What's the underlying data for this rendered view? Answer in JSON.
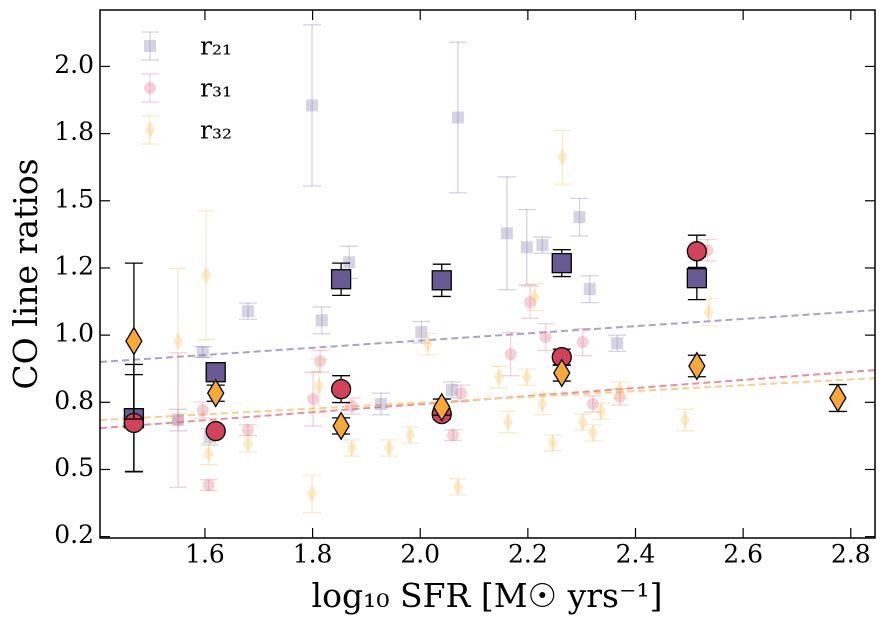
{
  "chart_data": {
    "type": "scatter",
    "ylabel": "CO line ratios",
    "xlabel": "log₁₀ SFR [M☉ yrs⁻¹]",
    "xlim": [
      1.405,
      2.845
    ],
    "ylim": [
      0.245,
      2.21
    ],
    "xticks": [
      1.6,
      1.8,
      {
        "value": 2,
        "label": "2.0"
      },
      2.2,
      2.4,
      2.6,
      2.8
    ],
    "yticks": [
      {
        "value": 0.25,
        "label": "0.2"
      },
      0.5,
      {
        "value": 0.75,
        "label": "0.8"
      },
      {
        "value": 1,
        "label": "1.0"
      },
      {
        "value": 1.25,
        "label": "1.2"
      },
      1.5,
      {
        "value": 1.75,
        "label": "1.8"
      },
      {
        "value": 2,
        "label": "2.0"
      }
    ],
    "legend": "upper left",
    "series": [
      {
        "name": "r₂₁",
        "color": "#8a80b0",
        "marker": "square",
        "faint": true,
        "x": [
          1.55,
          1.596,
          1.609,
          1.68,
          1.799,
          1.817,
          1.868,
          1.927,
          2.002,
          2.059,
          2.07,
          2.161,
          2.198,
          2.227,
          2.296,
          2.315,
          2.366
        ],
        "y": [
          0.684,
          0.937,
          0.621,
          1.089,
          1.855,
          1.055,
          1.271,
          0.744,
          1.011,
          0.796,
          1.81,
          1.379,
          1.327,
          1.335,
          1.439,
          1.171,
          0.97
        ],
        "errors": [
          0.04,
          0.02,
          0.03,
          0.03,
          0.3,
          0.05,
          0.06,
          0.04,
          0.04,
          0.03,
          0.28,
          0.21,
          0.14,
          0.03,
          0.07,
          0.05,
          0.03
        ]
      },
      {
        "name": "r₃₁",
        "color": "#e07a90",
        "marker": "circle",
        "faint": true,
        "x": [
          1.55,
          1.596,
          1.607,
          1.68,
          1.801,
          1.814,
          1.873,
          2.061,
          2.076,
          2.168,
          2.204,
          2.233,
          2.302,
          2.321,
          2.371,
          2.534
        ],
        "y": [
          0.684,
          0.721,
          0.442,
          0.647,
          0.762,
          0.903,
          0.736,
          0.628,
          0.784,
          0.929,
          1.123,
          0.993,
          0.974,
          0.744,
          0.77,
          1.316
        ],
        "errors": [
          0.25,
          0.03,
          0.02,
          0.02,
          0.1,
          0.04,
          0.03,
          0.02,
          0.03,
          0.08,
          0.06,
          0.05,
          0.05,
          0.03,
          0.03,
          0.04
        ]
      },
      {
        "name": "r₃₂",
        "color": "#f5c56a",
        "marker": "diamond",
        "faint": true,
        "x": [
          1.55,
          1.602,
          1.607,
          1.68,
          1.799,
          1.812,
          1.873,
          1.942,
          1.981,
          2.014,
          2.07,
          2.146,
          2.163,
          2.198,
          2.213,
          2.227,
          2.246,
          2.264,
          2.302,
          2.321,
          2.336,
          2.371,
          2.492,
          2.536
        ],
        "y": [
          0.978,
          1.223,
          0.558,
          0.595,
          0.409,
          0.81,
          0.58,
          0.58,
          0.628,
          0.967,
          0.435,
          0.844,
          0.677,
          0.844,
          1.141,
          0.744,
          0.599,
          1.662,
          0.677,
          0.636,
          0.717,
          0.796,
          0.684,
          1.085
        ],
        "errors": [
          0.27,
          0.24,
          0.04,
          0.03,
          0.07,
          0.1,
          0.03,
          0.03,
          0.03,
          0.04,
          0.03,
          0.04,
          0.04,
          0.03,
          0.05,
          0.04,
          0.03,
          0.1,
          0.03,
          0.03,
          0.03,
          0.03,
          0.04,
          0.05
        ]
      },
      {
        "color": "#6a5a94",
        "marker": "square",
        "faint": false,
        "x": [
          1.468,
          1.62,
          1.853,
          2.04,
          2.263,
          2.514
        ],
        "y": [
          0.691,
          0.862,
          1.208,
          1.204,
          1.268,
          1.212
        ],
        "errors": [
          0.2,
          0.03,
          0.06,
          0.06,
          0.05,
          0.08
        ]
      },
      {
        "color": "#d1435b",
        "marker": "circle",
        "faint": false,
        "x": [
          1.468,
          1.62,
          1.853,
          2.04,
          2.263,
          2.514
        ],
        "y": [
          0.673,
          0.643,
          0.799,
          0.706,
          0.918,
          1.312
        ],
        "errors": [
          0.18,
          0.015,
          0.05,
          0.02,
          0.03,
          0.06
        ]
      },
      {
        "color": "#f5a93a",
        "marker": "diamond",
        "faint": false,
        "x": [
          1.468,
          1.62,
          1.853,
          2.04,
          2.263,
          2.514,
          2.776
        ],
        "y": [
          0.978,
          0.784,
          0.662,
          0.732,
          0.859,
          0.885,
          0.766
        ],
        "errors": [
          0.29,
          0.03,
          0.03,
          0.03,
          0.03,
          0.04,
          0.05
        ]
      }
    ],
    "fits": [
      {
        "color": "#a9a2c8",
        "x": [
          1.405,
          2.845
        ],
        "y": [
          0.9,
          1.093
        ]
      },
      {
        "color": "#e58fa3",
        "x": [
          1.405,
          2.845
        ],
        "y": [
          0.654,
          0.87
        ]
      },
      {
        "color": "#f8d08a",
        "x": [
          1.405,
          2.845
        ],
        "y": [
          0.684,
          0.84
        ]
      }
    ]
  }
}
